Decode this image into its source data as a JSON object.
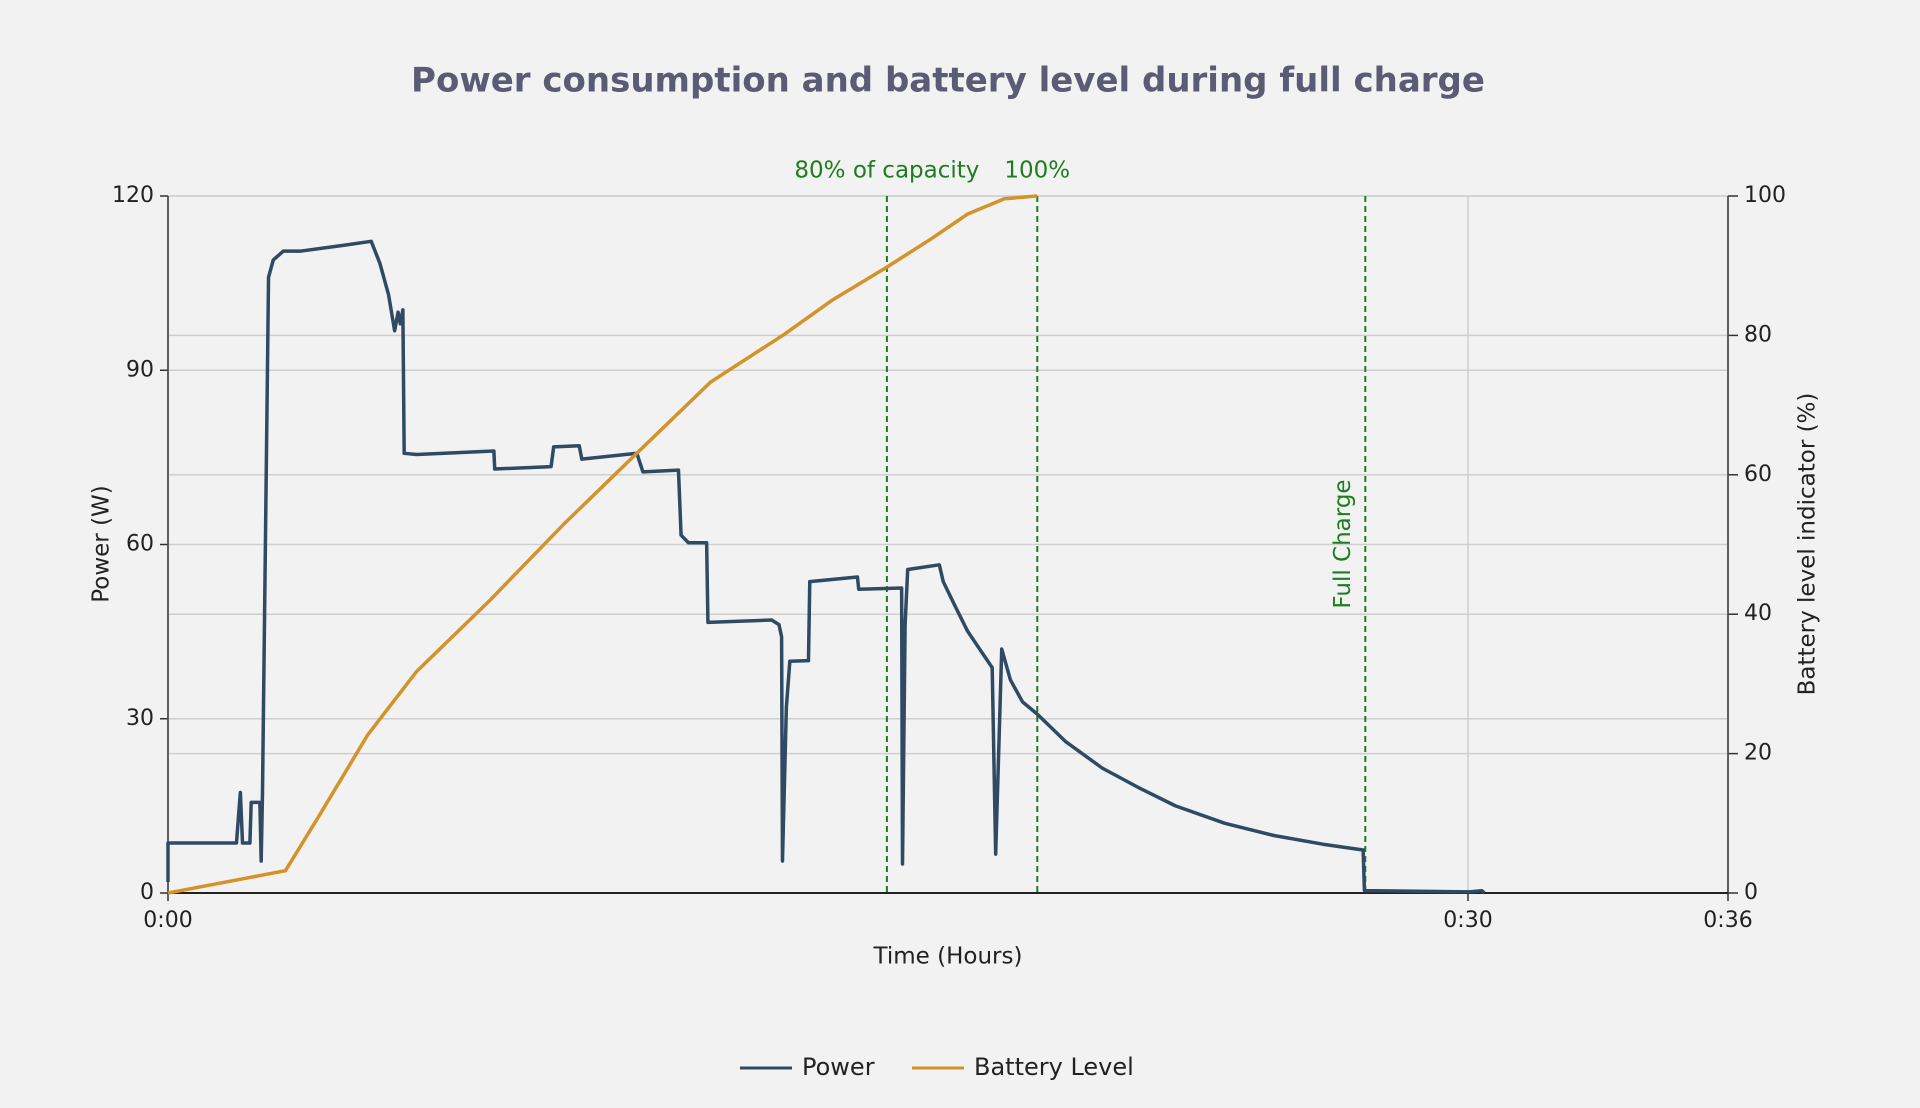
{
  "chart_data": {
    "type": "line",
    "title": "Power consumption and battery level during full charge",
    "xlabel": "Time (Hours)",
    "ylabel": "Power (W)",
    "y2label": "Battery level indicator (%)",
    "xlim": [
      0,
      36
    ],
    "xticks": [
      {
        "value": 0,
        "label": "0:00"
      },
      {
        "value": 30,
        "label": "0:30"
      },
      {
        "value": 36,
        "label": "0:36"
      }
    ],
    "ylim": [
      0,
      120
    ],
    "yticks": [
      0,
      30,
      60,
      90,
      120
    ],
    "y2lim": [
      0,
      100
    ],
    "y2ticks": [
      0,
      20,
      40,
      60,
      80,
      100
    ],
    "grid": true,
    "legend": "bottom",
    "series": [
      {
        "name": "Power",
        "color": "#2f4a62",
        "x": [
          0,
          0,
          1.58,
          1.64,
          1.67,
          1.72,
          1.89,
          1.92,
          2.12,
          2.15,
          2.18,
          2.32,
          2.43,
          2.66,
          3.05,
          4.04,
          4.69,
          4.89,
          5.09,
          5.23,
          5.31,
          5.36,
          5.42,
          5.45,
          5.74,
          7.52,
          7.54,
          8.84,
          8.9,
          9.49,
          9.55,
          10.82,
          10.96,
          11.78,
          11.84,
          12.01,
          12.43,
          12.46,
          13.93,
          14.1,
          14.16,
          14.18,
          14.27,
          14.35,
          14.78,
          14.81,
          15.91,
          15.94,
          16.93,
          16.95,
          17.01,
          17.07,
          17.8,
          17.89,
          18.17,
          18.45,
          18.73,
          19.02,
          19.1,
          19.24,
          19.44,
          19.72,
          20.06,
          20.71,
          21.56,
          22.41,
          23.25,
          24.39,
          25.52,
          26.65,
          27.58,
          27.61,
          30.04,
          30.32,
          30.38
        ],
        "values": [
          1.9,
          8.6,
          8.6,
          14.5,
          17.3,
          8.6,
          8.6,
          15.6,
          15.6,
          5.5,
          17,
          106,
          109,
          110.5,
          110.5,
          111.5,
          112.2,
          108.4,
          103,
          96.8,
          100,
          98,
          100.4,
          75.7,
          75.5,
          76.1,
          73,
          73.4,
          76.8,
          77,
          74.7,
          75.7,
          72.5,
          72.8,
          61.6,
          60.3,
          60.3,
          46.6,
          47,
          46.2,
          44.1,
          5.5,
          32,
          39.9,
          40,
          53.6,
          54.4,
          52.3,
          52.5,
          5,
          46.2,
          55.7,
          56.5,
          53.6,
          49.3,
          45.1,
          42,
          38.8,
          6.7,
          42,
          36.7,
          32.9,
          30.8,
          26.1,
          21.5,
          18.1,
          15,
          12,
          9.9,
          8.4,
          7.4,
          0.4,
          0.2,
          0.4,
          0
        ]
      },
      {
        "name": "Battery Level",
        "color": "#d4922a",
        "axis": "y2",
        "x": [
          0,
          2.71,
          3.48,
          4.61,
          5.74,
          7.43,
          9.13,
          10.82,
          12.52,
          14.21,
          15.34,
          16.59,
          17.6,
          18.45,
          19.3,
          20.06
        ],
        "values": [
          0,
          3.2,
          11,
          22.7,
          31.8,
          42,
          52.9,
          63.1,
          73.3,
          80.1,
          85.1,
          89.8,
          93.8,
          97.4,
          99.6,
          100
        ]
      }
    ],
    "annotations": [
      {
        "text": "80% of capacity",
        "x": 16.59,
        "color": "#1e7d1e"
      },
      {
        "text": "100%",
        "x": 20.06,
        "color": "#1e7d1e"
      },
      {
        "text": "Full Charge",
        "x": 27.63,
        "color": "#1e7d1e",
        "rotated": true
      }
    ]
  }
}
